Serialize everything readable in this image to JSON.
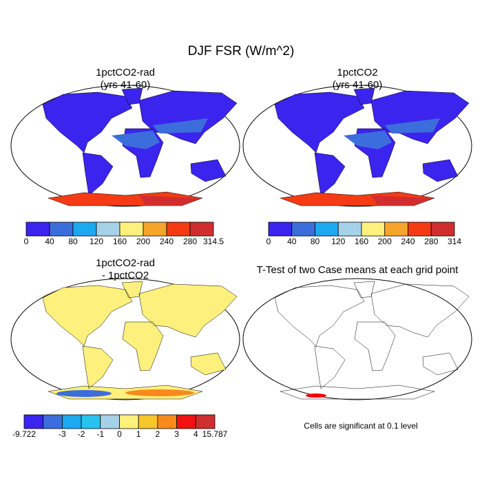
{
  "title": "DJF FSR (W/m^2)",
  "panels": [
    {
      "title": [
        "1pctCO2-rad",
        "(yrs 41-60)"
      ],
      "colorbar": {
        "colors": [
          "#3b24ee",
          "#3c6ddc",
          "#1ba9f0",
          "#a6d2e9",
          "#fef07c",
          "#f7a42a",
          "#f43b14",
          "#d02e2e"
        ],
        "labels": [
          "0",
          "40",
          "80",
          "120",
          "160",
          "200",
          "240",
          "280",
          "314.5"
        ]
      }
    },
    {
      "title": [
        "1pctCO2",
        "(yrs 41-60)"
      ],
      "colorbar": {
        "colors": [
          "#3b24ee",
          "#3c6ddc",
          "#1ba9f0",
          "#a6d2e9",
          "#fef07c",
          "#f7a42a",
          "#f43b14",
          "#d02e2e"
        ],
        "labels": [
          "0",
          "40",
          "80",
          "120",
          "160",
          "200",
          "240",
          "280",
          "314"
        ]
      }
    },
    {
      "title": [
        "1pctCO2-rad",
        "- 1pctCO2"
      ],
      "colorbar": {
        "colors": [
          "#3b24ee",
          "#3c6ddc",
          "#1ba9f0",
          "#28c3f0",
          "#a6d2e9",
          "#fef07c",
          "#f7c72a",
          "#f78a1a",
          "#f21010",
          "#d02e2e"
        ],
        "labels": [
          "-9.722",
          null,
          "-3",
          "-2",
          "-1",
          "0",
          "1",
          "2",
          "3",
          "4",
          "15.787"
        ]
      }
    },
    {
      "title": [
        "T-Test of two Case means at each grid point"
      ],
      "note": "Cells are significant at 0.1 level"
    }
  ]
}
